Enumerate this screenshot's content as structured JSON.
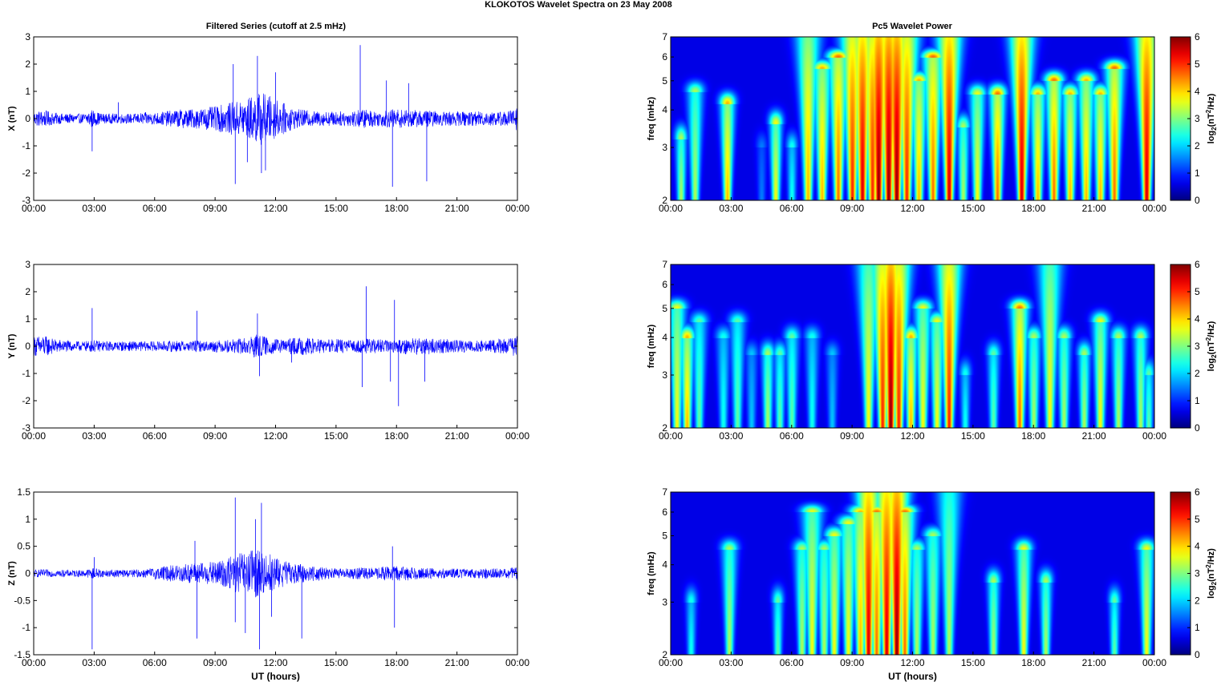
{
  "figure_title": "KLOKOTOS Wavelet Spectra on 23 May      2008",
  "left_title": "Filtered Series (cutoff at 2.5 mHz)",
  "right_title": "Pc5 Wavelet Power",
  "x_label": "UT (hours)",
  "freq_label": "freq (mHz)",
  "colorbar_label": "log2(nT2/Hz)",
  "colors": {
    "trace": "#0000ff",
    "axis": "#000000"
  },
  "chart_data": [
    {
      "type": "line",
      "title": "Filtered Series (cutoff at 2.5 mHz)",
      "ylabel": "X (nT)",
      "xlabel": "",
      "ylim": [
        -3,
        3
      ],
      "yticks": [
        "3",
        "2",
        "1",
        "0",
        "-1",
        "-2",
        "-3"
      ],
      "xticks": [
        "00:00",
        "03:00",
        "06:00",
        "09:00",
        "12:00",
        "15:00",
        "18:00",
        "21:00",
        "00:00"
      ],
      "series": [
        {
          "x_hours": [
            0,
            0.5,
            1,
            1.5,
            2,
            2.5,
            2.9,
            3,
            3.5,
            4,
            4.5,
            5,
            5.5,
            6,
            6.5,
            7,
            7.5,
            8,
            8.5,
            9,
            9.5,
            10,
            10.5,
            11,
            11.3,
            11.6,
            12,
            12.5,
            13,
            13.5,
            14,
            14.5,
            15,
            15.5,
            16,
            16.5,
            17,
            17.5,
            18,
            18.5,
            19,
            19.5,
            20,
            20.5,
            21,
            21.5,
            22,
            22.5,
            23,
            23.5,
            24
          ],
          "amplitude": [
            0.3,
            0.35,
            0.25,
            0.2,
            0.2,
            0.2,
            0.4,
            0.3,
            0.2,
            0.2,
            0.2,
            0.2,
            0.25,
            0.25,
            0.3,
            0.35,
            0.4,
            0.4,
            0.45,
            0.5,
            0.6,
            0.7,
            0.8,
            1.0,
            1.1,
            1.0,
            0.8,
            0.6,
            0.4,
            0.35,
            0.3,
            0.3,
            0.3,
            0.3,
            0.35,
            0.4,
            0.3,
            0.35,
            0.4,
            0.35,
            0.35,
            0.35,
            0.3,
            0.3,
            0.3,
            0.3,
            0.3,
            0.3,
            0.3,
            0.3,
            0.5
          ],
          "spikes": [
            [
              2.9,
              -1.2
            ],
            [
              4.2,
              0.6
            ],
            [
              9.9,
              2.0
            ],
            [
              10.0,
              -2.4
            ],
            [
              10.6,
              -1.6
            ],
            [
              11.1,
              2.3
            ],
            [
              11.3,
              -2.0
            ],
            [
              11.5,
              -1.9
            ],
            [
              12.0,
              1.7
            ],
            [
              16.2,
              2.7
            ],
            [
              17.5,
              1.4
            ],
            [
              17.8,
              -2.5
            ],
            [
              18.6,
              1.3
            ],
            [
              19.5,
              -2.3
            ],
            [
              24.0,
              2.4
            ],
            [
              24.0,
              -1.4
            ]
          ]
        }
      ]
    },
    {
      "type": "line",
      "ylabel": "Y (nT)",
      "xlabel": "",
      "ylim": [
        -3,
        3
      ],
      "yticks": [
        "3",
        "2",
        "1",
        "0",
        "-1",
        "-2",
        "-3"
      ],
      "xticks": [
        "00:00",
        "03:00",
        "06:00",
        "09:00",
        "12:00",
        "15:00",
        "18:00",
        "21:00",
        "00:00"
      ],
      "series": [
        {
          "x_hours": [
            0,
            0.5,
            1,
            1.5,
            2,
            2.5,
            3,
            3.5,
            4,
            4.5,
            5,
            5.5,
            6,
            6.5,
            7,
            7.5,
            8,
            8.5,
            9,
            9.5,
            10,
            10.5,
            11,
            11.5,
            12,
            12.5,
            13,
            13.5,
            14,
            14.5,
            15,
            15.5,
            16,
            16.5,
            17,
            17.5,
            18,
            18.5,
            19,
            19.5,
            20,
            20.5,
            21,
            21.5,
            22,
            22.5,
            23,
            23.5,
            24
          ],
          "amplitude": [
            0.4,
            0.45,
            0.3,
            0.25,
            0.2,
            0.2,
            0.25,
            0.2,
            0.2,
            0.2,
            0.2,
            0.2,
            0.2,
            0.2,
            0.25,
            0.2,
            0.25,
            0.2,
            0.25,
            0.25,
            0.3,
            0.35,
            0.5,
            0.4,
            0.3,
            0.3,
            0.35,
            0.35,
            0.3,
            0.3,
            0.3,
            0.25,
            0.25,
            0.3,
            0.3,
            0.25,
            0.25,
            0.35,
            0.35,
            0.35,
            0.3,
            0.3,
            0.25,
            0.25,
            0.25,
            0.25,
            0.3,
            0.3,
            0.45
          ],
          "spikes": [
            [
              2.9,
              1.4
            ],
            [
              8.1,
              1.3
            ],
            [
              11.1,
              1.2
            ],
            [
              11.2,
              -1.1
            ],
            [
              12.8,
              -0.6
            ],
            [
              16.3,
              -1.5
            ],
            [
              16.5,
              2.2
            ],
            [
              17.7,
              -1.3
            ],
            [
              17.9,
              1.7
            ],
            [
              18.1,
              -2.2
            ],
            [
              19.4,
              -1.3
            ],
            [
              24.0,
              0.8
            ],
            [
              24.0,
              -0.7
            ]
          ]
        }
      ]
    },
    {
      "type": "line",
      "ylabel": "Z (nT)",
      "xlabel": "UT (hours)",
      "ylim": [
        -1.5,
        1.5
      ],
      "yticks": [
        "1.5",
        "1",
        "0.5",
        "0",
        "-0.5",
        "-1",
        "-1.5"
      ],
      "xticks": [
        "00:00",
        "03:00",
        "06:00",
        "09:00",
        "12:00",
        "15:00",
        "18:00",
        "21:00",
        "00:00"
      ],
      "series": [
        {
          "x_hours": [
            0,
            0.5,
            1,
            1.5,
            2,
            2.5,
            3,
            3.5,
            4,
            4.5,
            5,
            5.5,
            6,
            6.5,
            7,
            7.5,
            8,
            8.5,
            9,
            9.5,
            10,
            10.5,
            11,
            11.5,
            12,
            12.5,
            13,
            13.5,
            14,
            14.5,
            15,
            15.5,
            16,
            16.5,
            17,
            17.5,
            18,
            18.5,
            19,
            19.5,
            20,
            20.5,
            21,
            21.5,
            22,
            22.5,
            23,
            23.5,
            24
          ],
          "amplitude": [
            0.08,
            0.08,
            0.07,
            0.07,
            0.07,
            0.07,
            0.12,
            0.07,
            0.08,
            0.08,
            0.08,
            0.09,
            0.12,
            0.15,
            0.18,
            0.2,
            0.22,
            0.22,
            0.25,
            0.3,
            0.4,
            0.45,
            0.5,
            0.45,
            0.35,
            0.25,
            0.2,
            0.18,
            0.15,
            0.12,
            0.1,
            0.1,
            0.12,
            0.12,
            0.12,
            0.15,
            0.15,
            0.15,
            0.12,
            0.12,
            0.1,
            0.1,
            0.1,
            0.1,
            0.1,
            0.1,
            0.1,
            0.1,
            0.15
          ],
          "spikes": [
            [
              2.9,
              -1.4
            ],
            [
              3.0,
              0.3
            ],
            [
              8.1,
              -1.2
            ],
            [
              8.0,
              0.6
            ],
            [
              10.0,
              1.4
            ],
            [
              10.0,
              -0.9
            ],
            [
              10.5,
              -1.1
            ],
            [
              11.0,
              1.0
            ],
            [
              11.2,
              -1.4
            ],
            [
              11.3,
              1.3
            ],
            [
              11.8,
              -0.8
            ],
            [
              13.3,
              -1.2
            ],
            [
              17.9,
              -1.0
            ],
            [
              17.8,
              0.5
            ],
            [
              24.0,
              0.95
            ]
          ]
        }
      ]
    },
    {
      "type": "heatmap",
      "title": "Pc5 Wavelet Power",
      "ylabel": "freq (mHz)",
      "xlabel": "",
      "ylim_mHz": [
        2,
        7
      ],
      "yscale": "log",
      "yticks": [
        "7",
        "6",
        "5",
        "4",
        "3",
        "2"
      ],
      "xticks": [
        "00:00",
        "03:00",
        "06:00",
        "09:00",
        "12:00",
        "15:00",
        "18:00",
        "21:00",
        "00:00"
      ],
      "colorbar": {
        "label": "log2(nT2/Hz)",
        "range": [
          0,
          6
        ],
        "ticks": [
          "6",
          "5",
          "4",
          "3",
          "2",
          "1",
          "0"
        ],
        "colormap": "jet"
      },
      "bursts": [
        {
          "t": 0.5,
          "f_top": 3.2,
          "peak": 3.0
        },
        {
          "t": 1.2,
          "f_top": 4.6,
          "peak": 3.0
        },
        {
          "t": 2.8,
          "f_top": 4.2,
          "peak": 4.0
        },
        {
          "t": 4.5,
          "f_top": 3.0,
          "peak": 1.0
        },
        {
          "t": 5.2,
          "f_top": 3.6,
          "peak": 3.5
        },
        {
          "t": 6.0,
          "f_top": 3.0,
          "peak": 2.0
        },
        {
          "t": 6.8,
          "f_top": 7.0,
          "peak": 4.0
        },
        {
          "t": 7.5,
          "f_top": 5.5,
          "peak": 4.0
        },
        {
          "t": 8.3,
          "f_top": 6.0,
          "peak": 4.5
        },
        {
          "t": 9.0,
          "f_top": 7.0,
          "peak": 5.0
        },
        {
          "t": 9.5,
          "f_top": 7.0,
          "peak": 5.5
        },
        {
          "t": 10.0,
          "f_top": 7.0,
          "peak": 5.0
        },
        {
          "t": 10.3,
          "f_top": 7.0,
          "peak": 6.0
        },
        {
          "t": 10.8,
          "f_top": 7.0,
          "peak": 6.0
        },
        {
          "t": 11.2,
          "f_top": 7.0,
          "peak": 6.0
        },
        {
          "t": 11.7,
          "f_top": 7.0,
          "peak": 5.0
        },
        {
          "t": 12.3,
          "f_top": 5.0,
          "peak": 4.0
        },
        {
          "t": 13.0,
          "f_top": 6.0,
          "peak": 4.5
        },
        {
          "t": 13.8,
          "f_top": 7.0,
          "peak": 5.5
        },
        {
          "t": 14.5,
          "f_top": 3.5,
          "peak": 3.0
        },
        {
          "t": 15.2,
          "f_top": 4.5,
          "peak": 3.5
        },
        {
          "t": 16.2,
          "f_top": 4.5,
          "peak": 4.5
        },
        {
          "t": 17.4,
          "f_top": 7.0,
          "peak": 5.5
        },
        {
          "t": 18.2,
          "f_top": 4.5,
          "peak": 4.0
        },
        {
          "t": 19.0,
          "f_top": 5.0,
          "peak": 4.5
        },
        {
          "t": 19.8,
          "f_top": 4.5,
          "peak": 4.0
        },
        {
          "t": 20.6,
          "f_top": 5.0,
          "peak": 4.0
        },
        {
          "t": 21.3,
          "f_top": 4.5,
          "peak": 4.0
        },
        {
          "t": 22.0,
          "f_top": 5.5,
          "peak": 4.5
        },
        {
          "t": 23.6,
          "f_top": 7.0,
          "peak": 5.5
        }
      ]
    },
    {
      "type": "heatmap",
      "ylabel": "freq (mHz)",
      "xlabel": "",
      "ylim_mHz": [
        2,
        7
      ],
      "yscale": "log",
      "yticks": [
        "7",
        "6",
        "5",
        "4",
        "3",
        "2"
      ],
      "xticks": [
        "00:00",
        "03:00",
        "06:00",
        "09:00",
        "12:00",
        "15:00",
        "18:00",
        "21:00",
        "00:00"
      ],
      "colorbar": {
        "label": "log2(nT2/Hz)",
        "range": [
          0,
          6
        ],
        "ticks": [
          "6",
          "5",
          "4",
          "3",
          "2",
          "1",
          "0"
        ],
        "colormap": "jet"
      },
      "bursts": [
        {
          "t": 0.3,
          "f_top": 5.0,
          "peak": 3.5
        },
        {
          "t": 0.8,
          "f_top": 4.0,
          "peak": 4.0
        },
        {
          "t": 1.4,
          "f_top": 4.5,
          "peak": 2.5
        },
        {
          "t": 2.6,
          "f_top": 4.0,
          "peak": 2.0
        },
        {
          "t": 3.3,
          "f_top": 4.5,
          "peak": 2.5
        },
        {
          "t": 4.0,
          "f_top": 3.5,
          "peak": 1.5
        },
        {
          "t": 4.8,
          "f_top": 3.5,
          "peak": 3.0
        },
        {
          "t": 5.4,
          "f_top": 3.5,
          "peak": 2.5
        },
        {
          "t": 6.0,
          "f_top": 4.0,
          "peak": 2.5
        },
        {
          "t": 7.0,
          "f_top": 4.0,
          "peak": 2.0
        },
        {
          "t": 8.0,
          "f_top": 3.5,
          "peak": 1.5
        },
        {
          "t": 9.8,
          "f_top": 7.0,
          "peak": 3.5
        },
        {
          "t": 10.5,
          "f_top": 7.0,
          "peak": 5.0
        },
        {
          "t": 10.9,
          "f_top": 7.0,
          "peak": 6.0
        },
        {
          "t": 11.3,
          "f_top": 7.0,
          "peak": 5.0
        },
        {
          "t": 11.9,
          "f_top": 4.0,
          "peak": 4.0
        },
        {
          "t": 12.5,
          "f_top": 5.0,
          "peak": 3.5
        },
        {
          "t": 13.2,
          "f_top": 4.5,
          "peak": 3.5
        },
        {
          "t": 13.8,
          "f_top": 7.0,
          "peak": 5.0
        },
        {
          "t": 14.6,
          "f_top": 3.0,
          "peak": 2.0
        },
        {
          "t": 16.0,
          "f_top": 3.5,
          "peak": 2.5
        },
        {
          "t": 17.3,
          "f_top": 5.0,
          "peak": 4.5
        },
        {
          "t": 18.0,
          "f_top": 4.0,
          "peak": 3.0
        },
        {
          "t": 18.8,
          "f_top": 7.0,
          "peak": 3.5
        },
        {
          "t": 19.5,
          "f_top": 4.0,
          "peak": 3.0
        },
        {
          "t": 20.5,
          "f_top": 3.5,
          "peak": 3.0
        },
        {
          "t": 21.3,
          "f_top": 4.5,
          "peak": 3.5
        },
        {
          "t": 22.2,
          "f_top": 4.0,
          "peak": 3.0
        },
        {
          "t": 23.3,
          "f_top": 4.0,
          "peak": 3.0
        },
        {
          "t": 23.7,
          "f_top": 3.0,
          "peak": 2.5
        }
      ]
    },
    {
      "type": "heatmap",
      "ylabel": "freq (mHz)",
      "xlabel": "UT (hours)",
      "ylim_mHz": [
        2,
        7
      ],
      "yscale": "log",
      "yticks": [
        "7",
        "6",
        "5",
        "4",
        "3",
        "2"
      ],
      "xticks": [
        "00:00",
        "03:00",
        "06:00",
        "09:00",
        "12:00",
        "15:00",
        "18:00",
        "21:00",
        "00:00"
      ],
      "colorbar": {
        "label": "log2(nT2/Hz)",
        "range": [
          0,
          6
        ],
        "ticks": [
          "6",
          "5",
          "4",
          "3",
          "2",
          "1",
          "0"
        ],
        "colormap": "jet"
      },
      "bursts": [
        {
          "t": 1.0,
          "f_top": 3.0,
          "peak": 2.0
        },
        {
          "t": 2.9,
          "f_top": 4.5,
          "peak": 3.0
        },
        {
          "t": 5.3,
          "f_top": 3.0,
          "peak": 2.5
        },
        {
          "t": 6.5,
          "f_top": 4.5,
          "peak": 3.0
        },
        {
          "t": 7.0,
          "f_top": 6.0,
          "peak": 3.5
        },
        {
          "t": 7.6,
          "f_top": 4.5,
          "peak": 3.0
        },
        {
          "t": 8.1,
          "f_top": 5.0,
          "peak": 3.5
        },
        {
          "t": 8.8,
          "f_top": 5.5,
          "peak": 3.5
        },
        {
          "t": 9.4,
          "f_top": 6.0,
          "peak": 4.0
        },
        {
          "t": 9.8,
          "f_top": 7.0,
          "peak": 5.5
        },
        {
          "t": 10.2,
          "f_top": 6.0,
          "peak": 4.5
        },
        {
          "t": 10.7,
          "f_top": 7.0,
          "peak": 5.5
        },
        {
          "t": 11.2,
          "f_top": 7.0,
          "peak": 6.0
        },
        {
          "t": 11.6,
          "f_top": 6.0,
          "peak": 4.5
        },
        {
          "t": 12.2,
          "f_top": 4.5,
          "peak": 3.0
        },
        {
          "t": 13.0,
          "f_top": 5.0,
          "peak": 3.0
        },
        {
          "t": 13.8,
          "f_top": 7.0,
          "peak": 3.0
        },
        {
          "t": 16.0,
          "f_top": 3.5,
          "peak": 3.0
        },
        {
          "t": 17.5,
          "f_top": 4.5,
          "peak": 3.5
        },
        {
          "t": 18.6,
          "f_top": 3.5,
          "peak": 3.0
        },
        {
          "t": 22.0,
          "f_top": 3.0,
          "peak": 2.5
        },
        {
          "t": 23.6,
          "f_top": 4.5,
          "peak": 3.5
        }
      ]
    }
  ]
}
